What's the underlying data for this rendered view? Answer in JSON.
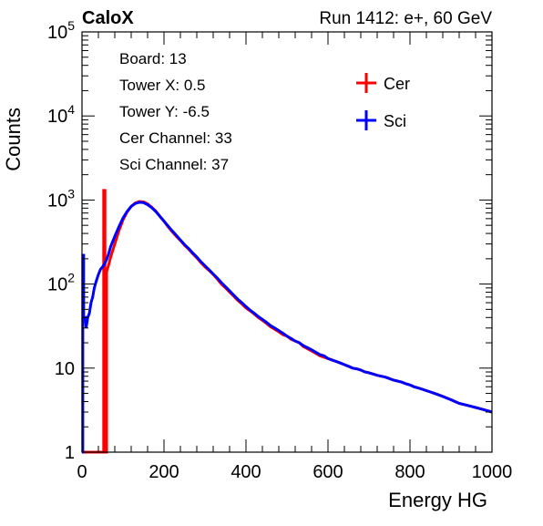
{
  "header": {
    "left": "CaloX",
    "right": "Run 1412: e+, 60 GeV"
  },
  "info_box": {
    "lines": [
      "Board: 13",
      "Tower X: 0.5",
      "Tower Y: -6.5",
      "Cer Channel: 33",
      "Sci Channel: 37"
    ]
  },
  "chart_data": {
    "type": "line",
    "xlabel": "Energy HG",
    "ylabel": "Counts",
    "xlim": [
      0,
      1000
    ],
    "ylim": [
      1,
      100000
    ],
    "y_scale": "log",
    "x_ticks": [
      0,
      200,
      400,
      600,
      800,
      1000
    ],
    "y_tick_labels": [
      {
        "value": 1,
        "label": "1"
      },
      {
        "value": 10,
        "label": "10"
      },
      {
        "value": 100,
        "label": "10",
        "exp": "2"
      },
      {
        "value": 1000,
        "label": "10",
        "exp": "3"
      },
      {
        "value": 10000,
        "label": "10",
        "exp": "4"
      },
      {
        "value": 100000,
        "label": "10",
        "exp": "5"
      }
    ],
    "grid": false,
    "legend_position": "top-right",
    "series": [
      {
        "name": "Cer",
        "color": "#ff0000",
        "points": [
          [
            0,
            1
          ],
          [
            53,
            1
          ],
          [
            53,
            1300
          ],
          [
            56,
            1300
          ],
          [
            56,
            1
          ],
          [
            60,
            1
          ],
          [
            60,
            140
          ],
          [
            65,
            170
          ],
          [
            70,
            210
          ],
          [
            80,
            300
          ],
          [
            90,
            430
          ],
          [
            100,
            580
          ],
          [
            110,
            720
          ],
          [
            120,
            840
          ],
          [
            130,
            920
          ],
          [
            140,
            960
          ],
          [
            150,
            950
          ],
          [
            160,
            900
          ],
          [
            170,
            820
          ],
          [
            180,
            740
          ],
          [
            190,
            640
          ],
          [
            200,
            560
          ],
          [
            210,
            480
          ],
          [
            220,
            420
          ],
          [
            230,
            370
          ],
          [
            240,
            330
          ],
          [
            250,
            290
          ],
          [
            260,
            260
          ],
          [
            270,
            230
          ],
          [
            280,
            205
          ],
          [
            290,
            180
          ],
          [
            300,
            160
          ],
          [
            310,
            145
          ],
          [
            320,
            130
          ],
          [
            330,
            115
          ],
          [
            340,
            100
          ],
          [
            350,
            90
          ],
          [
            360,
            80
          ],
          [
            370,
            72
          ],
          [
            380,
            64
          ],
          [
            390,
            58
          ],
          [
            400,
            52
          ],
          [
            410,
            48
          ],
          [
            420,
            44
          ],
          [
            430,
            40
          ],
          [
            440,
            37
          ],
          [
            450,
            34
          ],
          [
            460,
            31
          ],
          [
            470,
            29
          ],
          [
            480,
            27
          ],
          [
            490,
            25
          ],
          [
            500,
            24
          ],
          [
            510,
            22
          ],
          [
            520,
            21
          ],
          [
            530,
            20
          ],
          [
            540,
            18
          ],
          [
            550,
            17
          ],
          [
            560,
            16
          ],
          [
            570,
            15
          ],
          [
            580,
            14
          ],
          [
            590,
            13.5
          ],
          [
            600,
            13
          ],
          [
            610,
            12.5
          ],
          [
            620,
            12
          ],
          [
            630,
            11.5
          ],
          [
            640,
            11
          ],
          [
            650,
            10.5
          ],
          [
            660,
            10
          ],
          [
            670,
            9.8
          ],
          [
            680,
            9.5
          ],
          [
            690,
            9
          ],
          [
            700,
            8.8
          ],
          [
            710,
            8.5
          ],
          [
            720,
            8.2
          ],
          [
            730,
            8
          ],
          [
            740,
            7.8
          ],
          [
            750,
            7.5
          ],
          [
            760,
            7.2
          ],
          [
            770,
            7
          ],
          [
            780,
            6.8
          ],
          [
            790,
            6.5
          ],
          [
            800,
            6.3
          ],
          [
            810,
            6
          ],
          [
            820,
            5.8
          ],
          [
            830,
            5.6
          ],
          [
            840,
            5.4
          ],
          [
            850,
            5.2
          ],
          [
            860,
            5
          ],
          [
            870,
            4.8
          ],
          [
            880,
            4.6
          ],
          [
            890,
            4.4
          ],
          [
            900,
            4.2
          ],
          [
            910,
            4
          ],
          [
            920,
            3.8
          ],
          [
            930,
            3.7
          ],
          [
            940,
            3.6
          ],
          [
            950,
            3.5
          ],
          [
            960,
            3.4
          ],
          [
            970,
            3.3
          ],
          [
            980,
            3.2
          ],
          [
            990,
            3.1
          ],
          [
            1000,
            3
          ]
        ]
      },
      {
        "name": "Sci",
        "color": "#0000ff",
        "points": [
          [
            0,
            1
          ],
          [
            2,
            1
          ],
          [
            2,
            220
          ],
          [
            4,
            220
          ],
          [
            4,
            40
          ],
          [
            8,
            40
          ],
          [
            10,
            30
          ],
          [
            14,
            40
          ],
          [
            18,
            45
          ],
          [
            22,
            60
          ],
          [
            26,
            70
          ],
          [
            30,
            90
          ],
          [
            35,
            110
          ],
          [
            40,
            130
          ],
          [
            45,
            150
          ],
          [
            50,
            160
          ],
          [
            55,
            175
          ],
          [
            60,
            195
          ],
          [
            65,
            230
          ],
          [
            70,
            280
          ],
          [
            80,
            370
          ],
          [
            90,
            480
          ],
          [
            100,
            610
          ],
          [
            110,
            730
          ],
          [
            120,
            840
          ],
          [
            130,
            910
          ],
          [
            140,
            940
          ],
          [
            150,
            930
          ],
          [
            160,
            880
          ],
          [
            170,
            810
          ],
          [
            180,
            730
          ],
          [
            190,
            640
          ],
          [
            200,
            560
          ],
          [
            210,
            490
          ],
          [
            220,
            430
          ],
          [
            230,
            380
          ],
          [
            240,
            335
          ],
          [
            250,
            295
          ],
          [
            260,
            265
          ],
          [
            270,
            235
          ],
          [
            280,
            210
          ],
          [
            290,
            185
          ],
          [
            300,
            165
          ],
          [
            310,
            148
          ],
          [
            320,
            132
          ],
          [
            330,
            118
          ],
          [
            340,
            104
          ],
          [
            350,
            93
          ],
          [
            360,
            83
          ],
          [
            370,
            74
          ],
          [
            380,
            66
          ],
          [
            390,
            60
          ],
          [
            400,
            54
          ],
          [
            410,
            49
          ],
          [
            420,
            45
          ],
          [
            430,
            41
          ],
          [
            440,
            38
          ],
          [
            450,
            35
          ],
          [
            460,
            32
          ],
          [
            470,
            30
          ],
          [
            480,
            28
          ],
          [
            490,
            26
          ],
          [
            500,
            24
          ],
          [
            510,
            22.5
          ],
          [
            520,
            21
          ],
          [
            530,
            20
          ],
          [
            540,
            18.5
          ],
          [
            550,
            17.5
          ],
          [
            560,
            16.5
          ],
          [
            570,
            15.5
          ],
          [
            580,
            14.5
          ],
          [
            590,
            14
          ],
          [
            600,
            13
          ],
          [
            610,
            12.5
          ],
          [
            620,
            12
          ],
          [
            630,
            11.5
          ],
          [
            640,
            11
          ],
          [
            650,
            10.5
          ],
          [
            660,
            10
          ],
          [
            670,
            9.8
          ],
          [
            680,
            9.5
          ],
          [
            690,
            9
          ],
          [
            700,
            8.8
          ],
          [
            710,
            8.5
          ],
          [
            720,
            8.2
          ],
          [
            730,
            8
          ],
          [
            740,
            7.8
          ],
          [
            750,
            7.5
          ],
          [
            760,
            7.2
          ],
          [
            770,
            7
          ],
          [
            780,
            6.8
          ],
          [
            790,
            6.5
          ],
          [
            800,
            6.3
          ],
          [
            810,
            6
          ],
          [
            820,
            5.8
          ],
          [
            830,
            5.6
          ],
          [
            840,
            5.4
          ],
          [
            850,
            5.2
          ],
          [
            860,
            5
          ],
          [
            870,
            4.8
          ],
          [
            880,
            4.6
          ],
          [
            890,
            4.4
          ],
          [
            900,
            4.2
          ],
          [
            910,
            4
          ],
          [
            920,
            3.8
          ],
          [
            930,
            3.7
          ],
          [
            940,
            3.6
          ],
          [
            950,
            3.5
          ],
          [
            960,
            3.4
          ],
          [
            970,
            3.3
          ],
          [
            980,
            3.2
          ],
          [
            990,
            3.1
          ],
          [
            1000,
            3
          ]
        ]
      }
    ]
  }
}
